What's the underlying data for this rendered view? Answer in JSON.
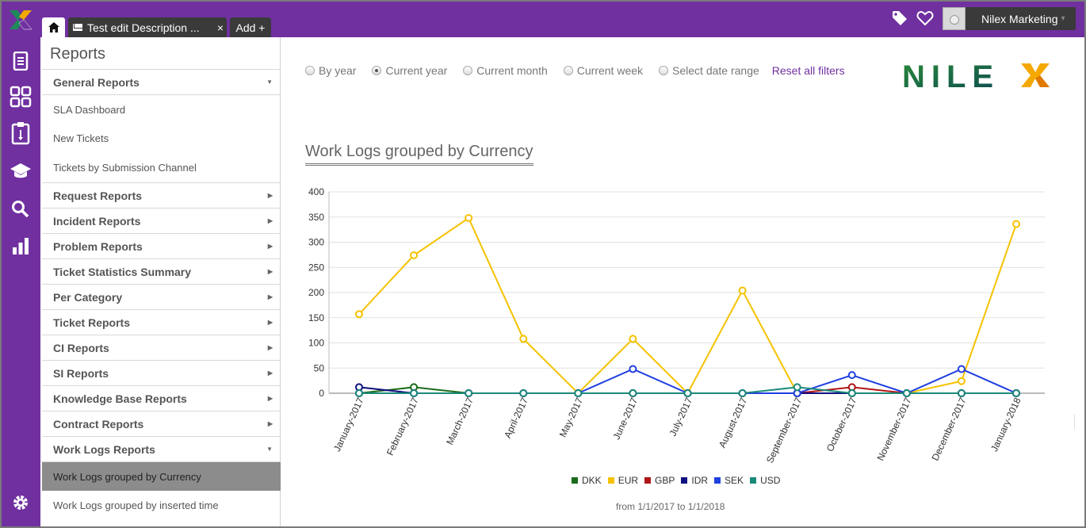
{
  "topbar": {
    "tabs": [
      {
        "label": "",
        "icon": "home-icon"
      },
      {
        "label": "Test edit Description ...",
        "icon": "mail-icon",
        "close": "×"
      },
      {
        "label": "Add +"
      }
    ],
    "user_name": "Nilex Marketing",
    "accent": "#7030a0"
  },
  "rail": [
    "document-icon",
    "grid-icon",
    "clipboard-icon",
    "graduation-cap-icon",
    "search-icon",
    "bar-chart-icon",
    "gear-icon"
  ],
  "sidebar": {
    "title": "Reports",
    "sections": [
      {
        "label": "General Reports",
        "expanded": true,
        "items": [
          "SLA Dashboard",
          "New Tickets",
          "Tickets by Submission Channel"
        ]
      },
      {
        "label": "Request Reports",
        "expanded": false
      },
      {
        "label": "Incident Reports",
        "expanded": false
      },
      {
        "label": "Problem Reports",
        "expanded": false
      },
      {
        "label": "Ticket Statistics Summary",
        "expanded": false
      },
      {
        "label": "Per Category",
        "expanded": false
      },
      {
        "label": "Ticket Reports",
        "expanded": false
      },
      {
        "label": "CI Reports",
        "expanded": false
      },
      {
        "label": "SI Reports",
        "expanded": false
      },
      {
        "label": "Knowledge Base Reports",
        "expanded": false
      },
      {
        "label": "Contract Reports",
        "expanded": false
      },
      {
        "label": "Work Logs Reports",
        "expanded": true,
        "items": [
          "Work Logs grouped by Currency",
          "Work Logs grouped by inserted time"
        ]
      }
    ],
    "active_item": "Work Logs grouped by Currency"
  },
  "filters": {
    "options": [
      "By year",
      "Current year",
      "Current month",
      "Current week",
      "Select date range"
    ],
    "selected": "Current year",
    "reset_label": "Reset all filters"
  },
  "brand": "NILEX",
  "chart_title": "Work Logs grouped by Currency",
  "range_text": "from 1/1/2017 to 1/1/2018",
  "chart_data": {
    "type": "line",
    "categories": [
      "January-2017",
      "February-2017",
      "March-2017",
      "April-2017",
      "May-2017",
      "June-2017",
      "July-2017",
      "August-2017",
      "September-2017",
      "October-2017",
      "November-2017",
      "December-2017",
      "January-2018"
    ],
    "ylim": [
      0,
      400
    ],
    "yticks": [
      0,
      50,
      100,
      150,
      200,
      250,
      300,
      350,
      400
    ],
    "legend_position": "bottom",
    "grid": true,
    "series": [
      {
        "name": "DKK",
        "color": "#1a6b1a",
        "values": [
          0,
          12,
          0,
          0,
          0,
          0,
          0,
          0,
          0,
          0,
          0,
          0,
          0
        ]
      },
      {
        "name": "EUR",
        "color": "#f5c200",
        "values": [
          157,
          274,
          348,
          108,
          0,
          108,
          0,
          204,
          0,
          0,
          0,
          24,
          336
        ]
      },
      {
        "name": "GBP",
        "color": "#b01515",
        "values": [
          0,
          0,
          0,
          0,
          0,
          0,
          0,
          0,
          0,
          12,
          0,
          0,
          0
        ]
      },
      {
        "name": "IDR",
        "color": "#101080",
        "values": [
          12,
          0,
          0,
          0,
          0,
          0,
          0,
          0,
          0,
          0,
          0,
          0,
          0
        ]
      },
      {
        "name": "SEK",
        "color": "#1f3fe0",
        "values": [
          0,
          0,
          0,
          0,
          0,
          48,
          0,
          0,
          0,
          36,
          0,
          48,
          0
        ]
      },
      {
        "name": "USD",
        "color": "#1a8a7a",
        "values": [
          0,
          0,
          0,
          0,
          0,
          0,
          0,
          0,
          12,
          0,
          0,
          0,
          0
        ]
      }
    ]
  }
}
